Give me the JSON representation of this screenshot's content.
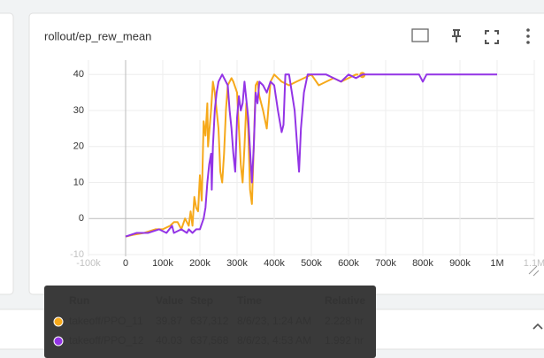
{
  "card": {
    "title": "rollout/ep_rew_mean"
  },
  "chart_data": {
    "type": "line",
    "xlim": [
      -100000,
      1100000
    ],
    "ylim": [
      -10.5,
      44
    ],
    "xticks": [
      {
        "value": -100000,
        "label": "-100k"
      },
      0,
      {
        "value": 100000,
        "label": "100k"
      },
      {
        "value": 200000,
        "label": "200k"
      },
      {
        "value": 300000,
        "label": "300k"
      },
      {
        "value": 400000,
        "label": "400k"
      },
      {
        "value": 500000,
        "label": "500k"
      },
      {
        "value": 600000,
        "label": "600k"
      },
      {
        "value": 700000,
        "label": "700k"
      },
      {
        "value": 800000,
        "label": "800k"
      },
      {
        "value": 900000,
        "label": "900k"
      },
      {
        "value": 1000000,
        "label": "1M"
      },
      {
        "value": 1100000,
        "label": "1.1M"
      }
    ],
    "yticks": [
      -10,
      0,
      10,
      20,
      30,
      40
    ],
    "grid": true,
    "series": [
      {
        "name": "takeoff/PPO_11",
        "color": "#f6a91b",
        "x": [
          0,
          20000,
          50000,
          80000,
          100000,
          120000,
          130000,
          140000,
          150000,
          160000,
          170000,
          175000,
          180000,
          185000,
          190000,
          195000,
          200000,
          205000,
          210000,
          215000,
          220000,
          222000,
          230000,
          235000,
          240000,
          250000,
          255000,
          260000,
          265000,
          270000,
          275000,
          280000,
          285000,
          290000,
          300000,
          305000,
          310000,
          315000,
          320000,
          325000,
          330000,
          335000,
          340000,
          345000,
          350000,
          355000,
          360000,
          370000,
          380000,
          390000,
          400000,
          420000,
          440000,
          460000,
          480000,
          500000,
          520000,
          540000,
          560000,
          580000,
          600000,
          620000,
          637312
        ],
        "values": [
          -5,
          -4.5,
          -4,
          -3,
          -3,
          -2,
          -1,
          -1,
          -3,
          0,
          -2,
          2,
          -2,
          6,
          3,
          2,
          12,
          5,
          27,
          23,
          32,
          20,
          30,
          38,
          35,
          25,
          13,
          10,
          18,
          30,
          37,
          38,
          39,
          38,
          35,
          25,
          15,
          10,
          20,
          32,
          25,
          8,
          4,
          20,
          37,
          38,
          34,
          30,
          25,
          38,
          40,
          38,
          37,
          38,
          39,
          40,
          37,
          38,
          39,
          38,
          39,
          40,
          39.87
        ]
      },
      {
        "name": "takeoff/PPO_12",
        "color": "#9334e6",
        "x": [
          0,
          30000,
          60000,
          90000,
          110000,
          125000,
          130000,
          150000,
          165000,
          170000,
          180000,
          190000,
          200000,
          210000,
          215000,
          220000,
          225000,
          230000,
          232000,
          235000,
          240000,
          245000,
          250000,
          260000,
          270000,
          275000,
          280000,
          285000,
          290000,
          295000,
          300000,
          305000,
          310000,
          315000,
          320000,
          330000,
          340000,
          345000,
          350000,
          355000,
          360000,
          370000,
          380000,
          390000,
          400000,
          410000,
          420000,
          425000,
          430000,
          440000,
          455000,
          462000,
          467000,
          472000,
          480000,
          490000,
          520000,
          540000,
          560000,
          580000,
          600000,
          620000,
          637568,
          700000,
          790000,
          800000,
          810000,
          900000,
          1000000
        ],
        "values": [
          -5,
          -4,
          -4,
          -3,
          -4,
          -2,
          -4,
          -3,
          -4,
          -3,
          -4,
          -3,
          -3,
          0,
          3,
          10,
          15,
          18,
          8,
          20,
          30,
          35,
          38,
          40,
          38,
          37,
          30,
          25,
          18,
          13,
          28,
          34,
          30,
          32,
          38,
          28,
          10,
          20,
          35,
          32,
          38,
          37,
          35,
          38,
          37,
          30,
          24,
          26,
          40,
          40,
          30,
          20,
          13,
          25,
          35,
          40,
          40,
          40,
          39,
          38,
          40,
          39,
          40.03,
          40,
          40,
          38,
          40,
          40,
          40
        ]
      }
    ]
  },
  "tooltip": {
    "header": [
      "Run",
      "Value",
      "Step",
      "Time",
      "Relative"
    ],
    "rows": [
      [
        "takeoff/PPO_11",
        "39.87",
        "637,312",
        "8/6/23, 1:24 AM",
        "2.228 hr"
      ],
      [
        "takeoff/PPO_12",
        "40.03",
        "637,568",
        "8/6/23, 4:53 AM",
        "1.992 hr"
      ]
    ]
  }
}
